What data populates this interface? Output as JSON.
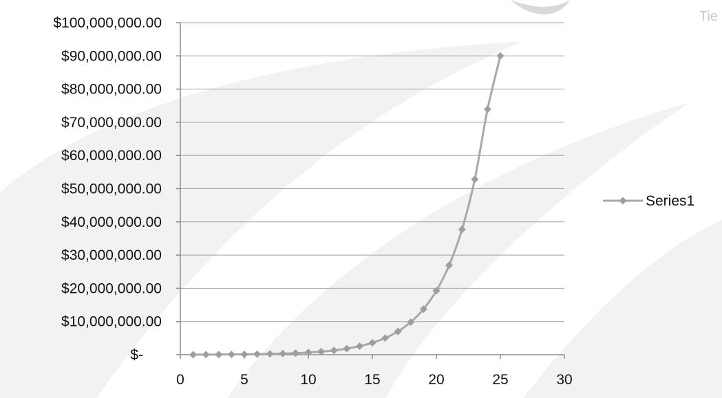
{
  "corner_text": "Tie",
  "colors": {
    "series": "#a8a8a8",
    "marker": "#9e9e9e",
    "grid": "#a0a0a0",
    "axis": "#8c8c8c",
    "swoosh": "#f2f2f2",
    "logo": "#d9d9d9"
  },
  "chart_data": {
    "type": "line",
    "title": "",
    "xlabel": "",
    "ylabel": "",
    "xlim": [
      0,
      30
    ],
    "ylim": [
      0,
      100000000
    ],
    "x_ticks": [
      0,
      5,
      10,
      15,
      20,
      25,
      30
    ],
    "x_tick_labels": [
      "0",
      "5",
      "10",
      "15",
      "20",
      "25",
      "30"
    ],
    "y_ticks": [
      0,
      10000000,
      20000000,
      30000000,
      40000000,
      50000000,
      60000000,
      70000000,
      80000000,
      90000000,
      100000000
    ],
    "y_tick_labels": [
      "$-",
      "$10,000,000.00",
      "$20,000,000.00",
      "$30,000,000.00",
      "$40,000,000.00",
      "$50,000,000.00",
      "$60,000,000.00",
      "$70,000,000.00",
      "$80,000,000.00",
      "$90,000,000.00",
      "$100,000,000.00"
    ],
    "grid": {
      "horizontal": true,
      "vertical": false
    },
    "legend": {
      "position": "right",
      "entries": [
        "Series1"
      ]
    },
    "series": [
      {
        "name": "Series1",
        "x": [
          1,
          2,
          3,
          4,
          5,
          6,
          7,
          8,
          9,
          10,
          11,
          12,
          13,
          14,
          15,
          16,
          17,
          18,
          19,
          20,
          21,
          22,
          23,
          24,
          25
        ],
        "values": [
          10000,
          20000,
          50000,
          80000,
          110000,
          160000,
          230000,
          330000,
          470000,
          660000,
          930000,
          1300000,
          1820000,
          2560000,
          3580000,
          5010000,
          7020000,
          9820000,
          13750000,
          19250000,
          26950000,
          37730000,
          52820000,
          73950000,
          90000000
        ]
      }
    ]
  }
}
